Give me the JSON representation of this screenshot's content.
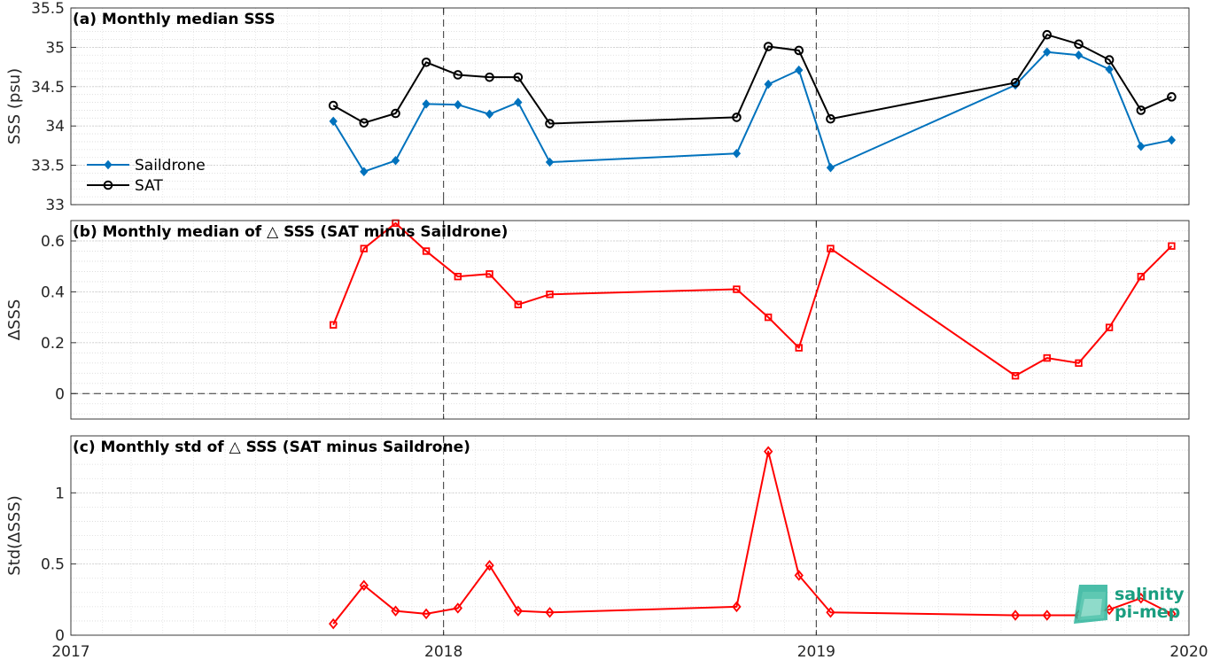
{
  "chart_data": [
    {
      "type": "line",
      "title": "(a) Monthly median SSS",
      "xlabel": "",
      "ylabel": "SSS (psu)",
      "xlim": [
        "2017-01-01",
        "2020-01-01"
      ],
      "ylim": [
        33,
        35.5
      ],
      "yticks": [
        33,
        33.5,
        34,
        34.5,
        35,
        35.5
      ],
      "grid": true,
      "minor_grid": true,
      "legend_position": "left-middle",
      "vlines": [
        "2018-01-01",
        "2019-01-01"
      ],
      "series": [
        {
          "name": "Saildrone",
          "color": "#0072BD",
          "marker": "filled-diamond",
          "x": [
            "2017-09-15",
            "2017-10-15",
            "2017-11-15",
            "2017-12-15",
            "2018-01-15",
            "2018-02-15",
            "2018-03-15",
            "2018-04-15",
            "2018-10-15",
            "2018-11-15",
            "2018-12-15",
            "2019-01-15",
            "2019-07-15",
            "2019-08-15",
            "2019-09-15",
            "2019-10-15",
            "2019-11-15",
            "2019-12-15"
          ],
          "y": [
            34.06,
            33.42,
            33.56,
            34.28,
            34.27,
            34.15,
            34.3,
            33.54,
            33.65,
            34.53,
            34.71,
            33.47,
            34.52,
            34.94,
            34.9,
            34.72,
            33.74,
            33.82
          ]
        },
        {
          "name": "SAT",
          "color": "#000000",
          "marker": "open-circle",
          "x": [
            "2017-09-15",
            "2017-10-15",
            "2017-11-15",
            "2017-12-15",
            "2018-01-15",
            "2018-02-15",
            "2018-03-15",
            "2018-04-15",
            "2018-10-15",
            "2018-11-15",
            "2018-12-15",
            "2019-01-15",
            "2019-07-15",
            "2019-08-15",
            "2019-09-15",
            "2019-10-15",
            "2019-11-15",
            "2019-12-15"
          ],
          "y": [
            34.26,
            34.04,
            34.16,
            34.81,
            34.65,
            34.62,
            34.62,
            34.03,
            34.11,
            35.01,
            34.96,
            34.09,
            34.55,
            35.16,
            35.04,
            34.84,
            34.2,
            34.37
          ]
        }
      ]
    },
    {
      "type": "line",
      "title": "(b) Monthly median of △ SSS (SAT minus Saildrone)",
      "xlabel": "",
      "ylabel": "ΔSSS",
      "xlim": [
        "2017-01-01",
        "2020-01-01"
      ],
      "ylim": [
        -0.1,
        0.68
      ],
      "yticks": [
        0,
        0.2,
        0.4,
        0.6
      ],
      "grid": true,
      "minor_grid": true,
      "hline": 0,
      "vlines": [
        "2018-01-01",
        "2019-01-01"
      ],
      "series": [
        {
          "color": "#FF0000",
          "marker": "open-square",
          "x": [
            "2017-09-15",
            "2017-10-15",
            "2017-11-15",
            "2017-12-15",
            "2018-01-15",
            "2018-02-15",
            "2018-03-15",
            "2018-04-15",
            "2018-10-15",
            "2018-11-15",
            "2018-12-15",
            "2019-01-15",
            "2019-07-15",
            "2019-08-15",
            "2019-09-15",
            "2019-10-15",
            "2019-11-15",
            "2019-12-15"
          ],
          "y": [
            0.27,
            0.57,
            0.67,
            0.56,
            0.46,
            0.47,
            0.35,
            0.39,
            0.41,
            0.3,
            0.18,
            0.57,
            0.07,
            0.14,
            0.12,
            0.26,
            0.46,
            0.58
          ]
        }
      ]
    },
    {
      "type": "line",
      "title": "(c) Monthly std of △ SSS (SAT minus Saildrone)",
      "xlabel": "",
      "ylabel": "Std(ΔSSS)",
      "xlim": [
        "2017-01-01",
        "2020-01-01"
      ],
      "ylim": [
        0,
        1.4
      ],
      "yticks": [
        0,
        0.5,
        1
      ],
      "xticks": [
        "2017",
        "2018",
        "2019",
        "2020"
      ],
      "grid": true,
      "minor_grid": true,
      "vlines": [
        "2018-01-01",
        "2019-01-01"
      ],
      "series": [
        {
          "color": "#FF0000",
          "marker": "open-diamond",
          "x": [
            "2017-09-15",
            "2017-10-15",
            "2017-11-15",
            "2017-12-15",
            "2018-01-15",
            "2018-02-15",
            "2018-03-15",
            "2018-04-15",
            "2018-10-15",
            "2018-11-15",
            "2018-12-15",
            "2019-01-15",
            "2019-07-15",
            "2019-08-15",
            "2019-09-15",
            "2019-10-15",
            "2019-11-15",
            "2019-12-15"
          ],
          "y": [
            0.08,
            0.35,
            0.17,
            0.15,
            0.19,
            0.49,
            0.17,
            0.16,
            0.2,
            1.29,
            0.42,
            0.16,
            0.14,
            0.14,
            0.14,
            0.18,
            0.26,
            0.15
          ]
        }
      ]
    }
  ],
  "logo": {
    "line1": "salinity",
    "line2": "pi-mep",
    "color": "#1a9e80"
  }
}
